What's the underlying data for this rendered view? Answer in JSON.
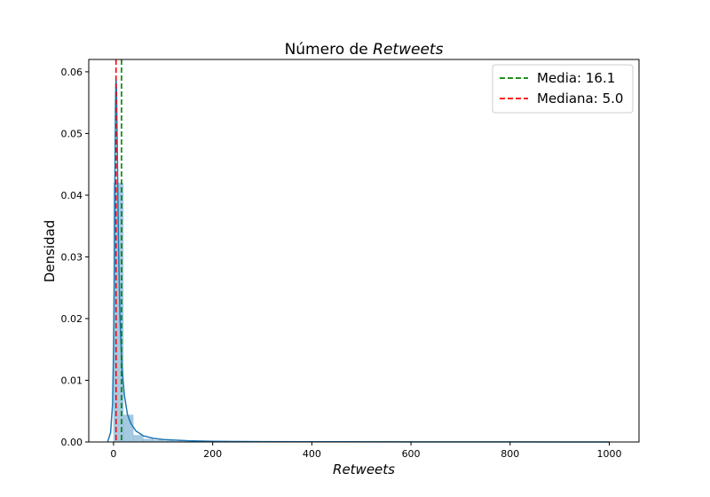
{
  "chart_data": {
    "type": "histogram",
    "title_prefix": "Número de ",
    "title_emphasis": "Retweets",
    "xlabel": "Retweets",
    "ylabel": "Densidad",
    "xlim": [
      -50,
      1060
    ],
    "ylim": [
      0,
      0.062
    ],
    "x_ticks": [
      0,
      200,
      400,
      600,
      800,
      1000
    ],
    "y_ticks": [
      0.0,
      0.01,
      0.02,
      0.03,
      0.04,
      0.05,
      0.06
    ],
    "x_tick_labels": [
      "0",
      "200",
      "400",
      "600",
      "800",
      "1000"
    ],
    "y_tick_labels": [
      "0.00",
      "0.01",
      "0.02",
      "0.03",
      "0.04",
      "0.05",
      "0.06"
    ],
    "histogram": {
      "bin_width": 20,
      "bins": [
        {
          "x0": 0,
          "x1": 20,
          "density": 0.042
        },
        {
          "x0": 20,
          "x1": 40,
          "density": 0.0044
        },
        {
          "x0": 40,
          "x1": 60,
          "density": 0.0011
        },
        {
          "x0": 60,
          "x1": 80,
          "density": 0.0005
        },
        {
          "x0": 80,
          "x1": 100,
          "density": 0.0003
        },
        {
          "x0": 100,
          "x1": 120,
          "density": 0.0002
        },
        {
          "x0": 120,
          "x1": 140,
          "density": 0.00012
        },
        {
          "x0": 140,
          "x1": 160,
          "density": 8e-05
        },
        {
          "x0": 160,
          "x1": 180,
          "density": 6e-05
        },
        {
          "x0": 180,
          "x1": 200,
          "density": 5e-05
        }
      ],
      "color": "#1f77b4",
      "opacity": 0.4
    },
    "kde": {
      "color": "#1f77b4",
      "points": [
        [
          -12,
          0.0
        ],
        [
          -6,
          0.0015
        ],
        [
          -2,
          0.006
        ],
        [
          0,
          0.015
        ],
        [
          2,
          0.032
        ],
        [
          3,
          0.045
        ],
        [
          4,
          0.055
        ],
        [
          5,
          0.059
        ],
        [
          6,
          0.057
        ],
        [
          8,
          0.045
        ],
        [
          10,
          0.032
        ],
        [
          13,
          0.02
        ],
        [
          17,
          0.012
        ],
        [
          22,
          0.0075
        ],
        [
          28,
          0.0045
        ],
        [
          35,
          0.003
        ],
        [
          45,
          0.0018
        ],
        [
          60,
          0.001
        ],
        [
          80,
          0.0006
        ],
        [
          100,
          0.0004
        ],
        [
          150,
          0.0002
        ],
        [
          200,
          0.0001
        ],
        [
          300,
          5e-05
        ],
        [
          400,
          3e-05
        ],
        [
          600,
          2e-05
        ],
        [
          800,
          1e-05
        ],
        [
          1000,
          0.0
        ]
      ]
    },
    "reference_lines": [
      {
        "value": 16.1,
        "label": "Media: 16.1",
        "color": "#008000",
        "style": "dashed"
      },
      {
        "value": 5.0,
        "label": "Mediana: 5.0",
        "color": "#ff0000",
        "style": "dashed"
      }
    ],
    "legend_position": "upper right",
    "grid": false
  }
}
